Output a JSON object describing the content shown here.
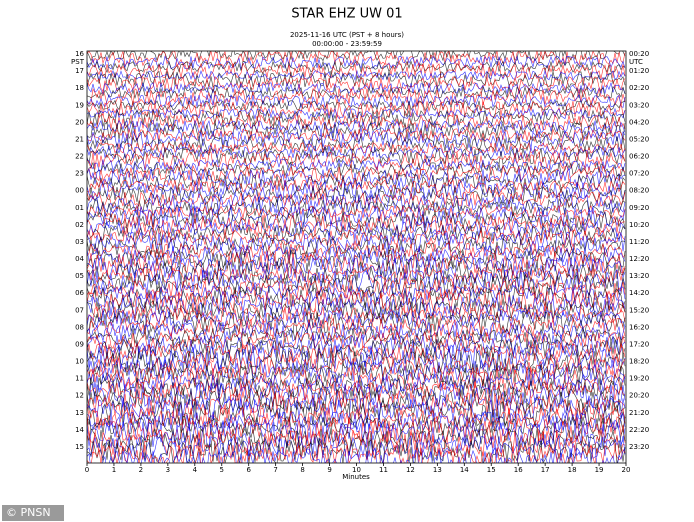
{
  "chart_data": {
    "type": "helicorder",
    "title": "STAR EHZ UW 01",
    "subtitle": [
      "2025-11-16 UTC (PST + 8 hours)",
      "00:00:00 - 23:59:59"
    ],
    "left_axis_label": "PST",
    "right_axis_label": "UTC",
    "left_labels": [
      "16",
      "17",
      "18",
      "19",
      "20",
      "21",
      "22",
      "23",
      "00",
      "01",
      "02",
      "03",
      "04",
      "05",
      "06",
      "07",
      "08",
      "09",
      "10",
      "11",
      "12",
      "13",
      "14",
      "15"
    ],
    "right_labels": [
      "00:20",
      "01:20",
      "02:20",
      "03:20",
      "04:20",
      "05:20",
      "06:20",
      "07:20",
      "08:20",
      "09:20",
      "10:20",
      "11:20",
      "12:20",
      "13:20",
      "14:20",
      "15:20",
      "16:20",
      "17:20",
      "18:20",
      "19:20",
      "20:20",
      "21:20",
      "22:20",
      "23:20"
    ],
    "xlim": [
      0,
      20
    ],
    "xticks": [
      0,
      1,
      2,
      3,
      4,
      5,
      6,
      7,
      8,
      9,
      10,
      11,
      12,
      13,
      14,
      15,
      16,
      17,
      18,
      19,
      20
    ],
    "xlabel": "Minutes",
    "trace_colors": [
      "#000000",
      "#ff0000",
      "#0000ff"
    ]
  },
  "credit": "© PNSN"
}
